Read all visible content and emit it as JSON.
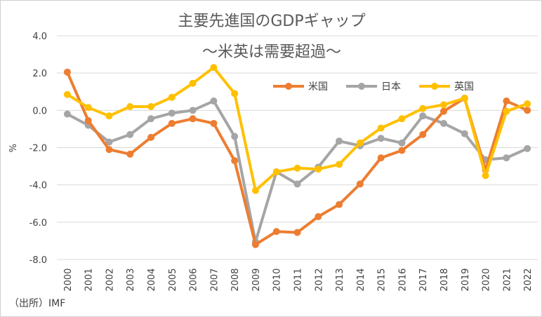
{
  "chart_data": {
    "type": "line",
    "title": "主要先進国のGDPギャップ",
    "subtitle": "～米英は需要超過～",
    "ylabel": "%",
    "xlabel": "",
    "source": "（出所）IMF",
    "ylim": [
      -8.0,
      4.0
    ],
    "yticks": [
      "4.0",
      "2.0",
      "0.0",
      "-2.0",
      "-4.0",
      "-6.0",
      "-8.0"
    ],
    "ytick_values": [
      4,
      2,
      0,
      -2,
      -4,
      -6,
      -8
    ],
    "x": [
      "2000",
      "2001",
      "2002",
      "2003",
      "2004",
      "2005",
      "2006",
      "2007",
      "2008",
      "2009",
      "2010",
      "2011",
      "2012",
      "2013",
      "2014",
      "2015",
      "2016",
      "2017",
      "2018",
      "2019",
      "2020",
      "2021",
      "2022"
    ],
    "grid": true,
    "legend_position": "top-right",
    "series": [
      {
        "name": "米国",
        "color": "#ED7D31",
        "values": [
          2.05,
          -0.55,
          -2.1,
          -2.35,
          -1.45,
          -0.7,
          -0.45,
          -0.7,
          -2.7,
          -7.2,
          -6.5,
          -6.55,
          -5.7,
          -5.05,
          -3.95,
          -2.55,
          -2.15,
          -1.3,
          -0.05,
          0.65,
          -3.2,
          0.5,
          0.0
        ]
      },
      {
        "name": "日本",
        "color": "#A5A5A5",
        "values": [
          -0.2,
          -0.8,
          -1.7,
          -1.3,
          -0.45,
          -0.15,
          0.0,
          0.5,
          -1.4,
          -7.05,
          -3.3,
          -3.95,
          -3.05,
          -1.65,
          -1.9,
          -1.5,
          -1.75,
          -0.3,
          -0.7,
          -1.25,
          -2.65,
          -2.55,
          -2.05
        ]
      },
      {
        "name": "英国",
        "color": "#FFC000",
        "values": [
          0.85,
          0.15,
          -0.3,
          0.2,
          0.2,
          0.7,
          1.45,
          2.3,
          0.9,
          -4.3,
          -3.3,
          -3.1,
          -3.15,
          -2.9,
          -1.75,
          -0.95,
          -0.45,
          0.1,
          0.3,
          0.65,
          -3.5,
          -0.05,
          0.35
        ]
      }
    ]
  }
}
